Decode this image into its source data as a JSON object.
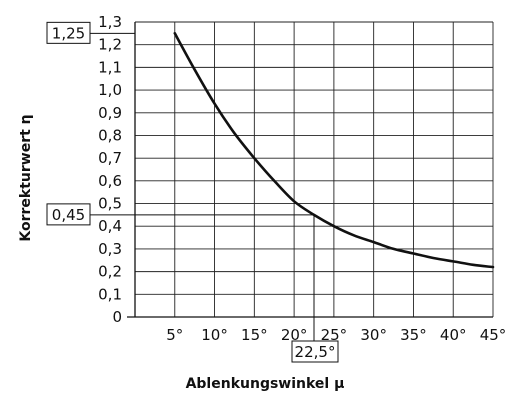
{
  "chart_data": {
    "type": "line",
    "xlabel": "Ablenkungswinkel μ",
    "ylabel": "Korrekturwert η",
    "xlim": [
      5,
      45
    ],
    "ylim": [
      0,
      1.3
    ],
    "grid": true,
    "x_ticks": [
      "5°",
      "10°",
      "15°",
      "20°",
      "25°",
      "30°",
      "35°",
      "40°",
      "45°"
    ],
    "y_ticks": [
      "0",
      "0,1",
      "0,2",
      "0,3",
      "0,4",
      "0,5",
      "0,6",
      "0,7",
      "0,8",
      "0,9",
      "1,0",
      "1,1",
      "1,2",
      "1,3"
    ],
    "series": [
      {
        "x": [
          5,
          7.5,
          10,
          12.5,
          15,
          17.5,
          20,
          22.5,
          25,
          27.5,
          30,
          32.5,
          35,
          37.5,
          40,
          42.5,
          45
        ],
        "y": [
          1.25,
          1.09,
          0.94,
          0.81,
          0.7,
          0.6,
          0.51,
          0.45,
          0.4,
          0.36,
          0.33,
          0.3,
          0.28,
          0.26,
          0.245,
          0.23,
          0.22
        ]
      }
    ],
    "annotations": [
      {
        "axis": "y",
        "label": "1,25",
        "value": 1.25
      },
      {
        "axis": "y",
        "label": "0,45",
        "value": 0.45
      },
      {
        "axis": "x",
        "label": "22,5°",
        "value": 22.5
      }
    ]
  }
}
